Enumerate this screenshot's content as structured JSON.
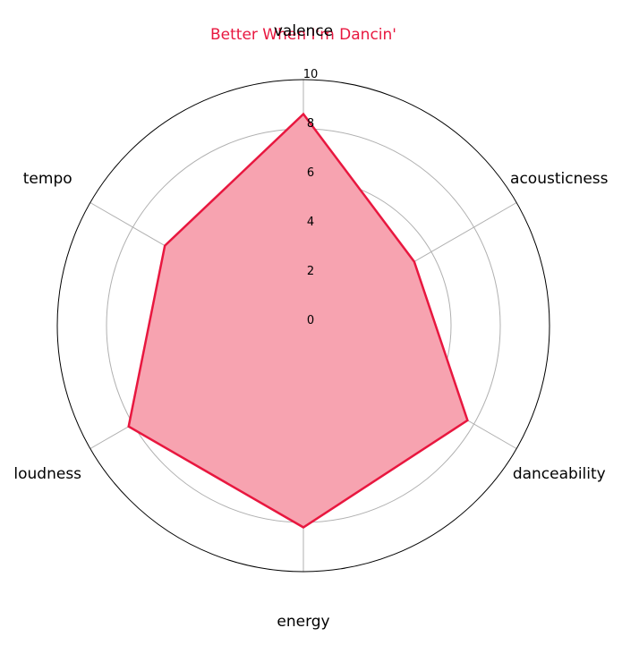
{
  "chart_data": {
    "type": "radar",
    "title": "Better When I'm Dancin'",
    "axes": [
      "valence",
      "acousticness",
      "danceability",
      "energy",
      "loudness",
      "tempo"
    ],
    "series": [
      {
        "name": "Better When I'm Dancin'",
        "values": [
          8.6,
          5.2,
          7.7,
          8.2,
          8.2,
          6.5
        ]
      }
    ],
    "rlim": [
      0,
      10
    ],
    "rticks": [
      0,
      2,
      4,
      6,
      8,
      10
    ],
    "grid": true,
    "colors": {
      "line": "#e8173f",
      "fill": "#f7a3b0",
      "title": "#e8173f",
      "grid": "#b0b0b0",
      "frame": "#000000"
    }
  }
}
